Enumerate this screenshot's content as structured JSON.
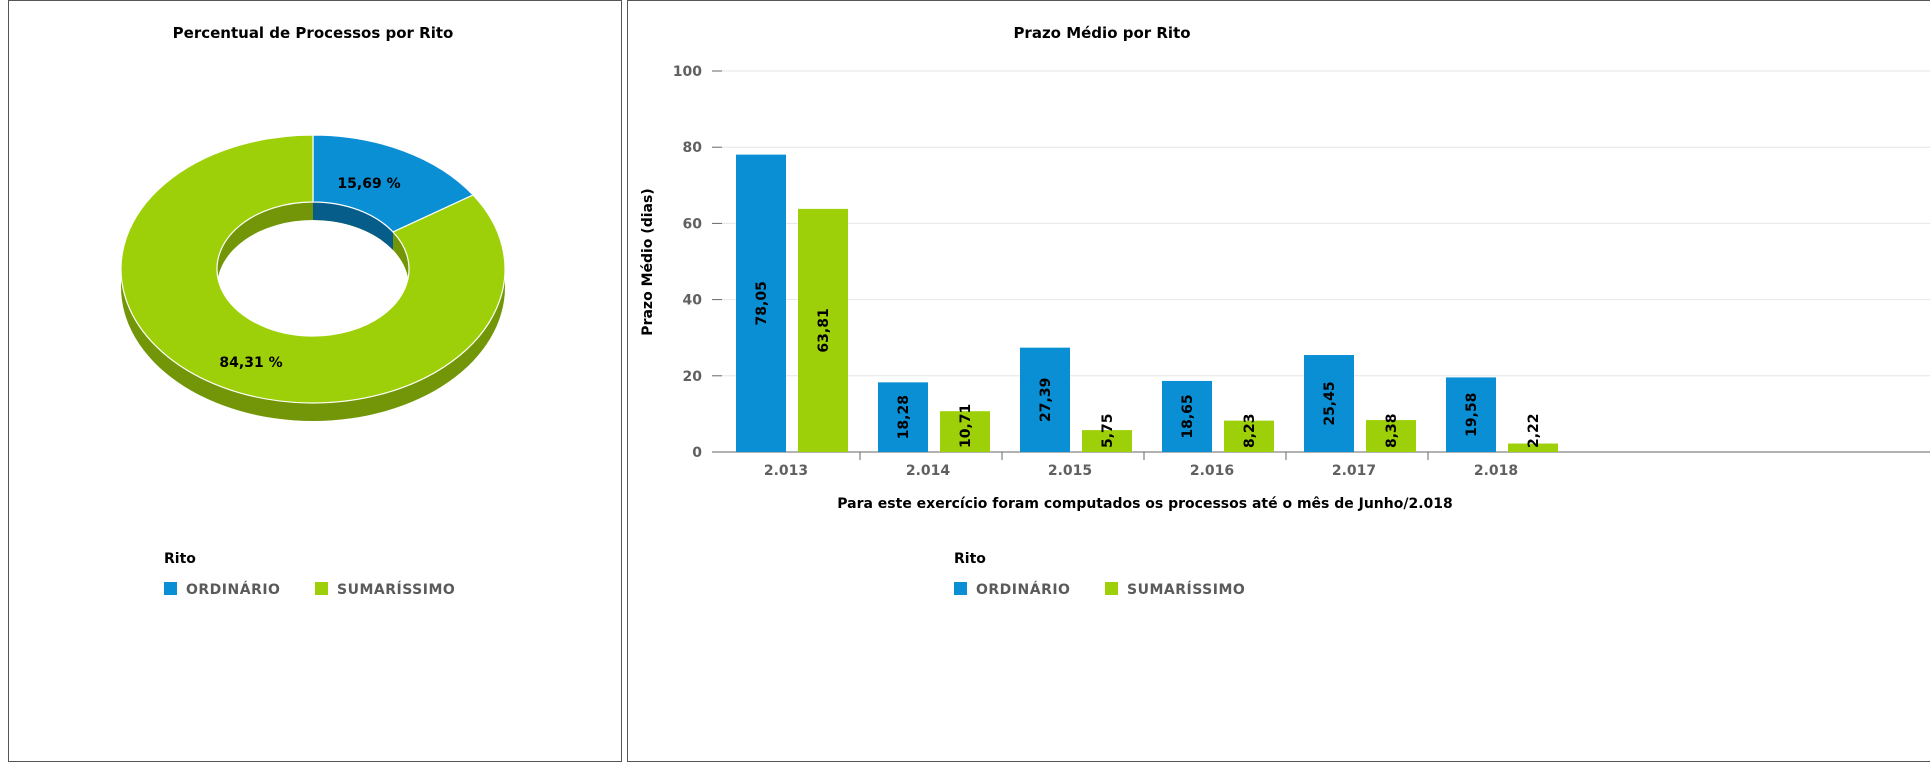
{
  "chart_data": [
    {
      "type": "pie",
      "title": "Percentual de Processos por Rito",
      "categories": [
        "ORDINÁRIO",
        "SUMARÍSSIMO"
      ],
      "values": [
        15.69,
        84.31
      ],
      "data_labels": [
        "15,69 %",
        "84,31 %"
      ],
      "colors": [
        "#0a8fd4",
        "#9ed00a"
      ],
      "legend": {
        "title": "Rito",
        "items": [
          "ORDINÁRIO",
          "SUMARÍSSIMO"
        ],
        "placement": "bottom-left"
      },
      "donut": true
    },
    {
      "type": "bar",
      "title": "Prazo Médio por Rito",
      "ylabel": "Prazo Médio (dias)",
      "xlabel": "Para este exercício foram computados os processos até o mês de Junho/2.018",
      "categories": [
        "2.013",
        "2.014",
        "2.015",
        "2.016",
        "2.017",
        "2.018"
      ],
      "series": [
        {
          "name": "ORDINÁRIO",
          "values": [
            78.05,
            18.28,
            27.39,
            18.65,
            25.45,
            19.58
          ],
          "labels": [
            "78,05",
            "18,28",
            "27,39",
            "18,65",
            "25,45",
            "19,58"
          ],
          "color": "#0a8fd4"
        },
        {
          "name": "SUMARÍSSIMO",
          "values": [
            63.81,
            10.71,
            5.75,
            8.23,
            8.38,
            2.22
          ],
          "labels": [
            "63,81",
            "10,71",
            "5,75",
            "8,23",
            "8,38",
            "2,22"
          ],
          "color": "#9ed00a"
        }
      ],
      "ylim": [
        0,
        100
      ],
      "yticks": [
        "0",
        "20",
        "40",
        "60",
        "80",
        "100"
      ],
      "grid": true,
      "legend": {
        "title": "Rito",
        "items": [
          "ORDINÁRIO",
          "SUMARÍSSIMO"
        ],
        "placement": "bottom-left"
      }
    }
  ]
}
